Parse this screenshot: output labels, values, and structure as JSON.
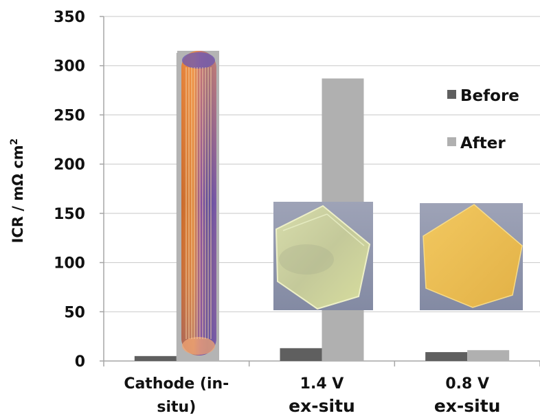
{
  "chart_data": {
    "type": "bar",
    "ylabel": "ICR / mΩ cm",
    "ylabel_sup": "2",
    "ylim": [
      0,
      350
    ],
    "yticks": [
      0,
      50,
      100,
      150,
      200,
      250,
      300,
      350
    ],
    "grid": true,
    "legend_position": "top-right",
    "categories": [
      {
        "lines": [
          "Cathode (in-",
          "situ)"
        ]
      },
      {
        "lines": [
          "1.4 V",
          "ex-situ"
        ]
      },
      {
        "lines": [
          "0.8 V",
          "ex-situ"
        ]
      }
    ],
    "series": [
      {
        "name": "Before",
        "color": "#5f5f5f",
        "values": [
          5,
          13,
          9
        ]
      },
      {
        "name": "After",
        "color": "#b0b0b0",
        "values": [
          313,
          287,
          11
        ]
      }
    ],
    "photo_insets": [
      {
        "category": 0,
        "subject": "cathode flow-field plate photo",
        "icon": "plate-photo"
      },
      {
        "category": 1,
        "subject": "sample photo after 1.4 V",
        "icon": "sample-photo-pale-green"
      },
      {
        "category": 2,
        "subject": "sample photo after 0.8 V",
        "icon": "sample-photo-yellow"
      }
    ]
  }
}
